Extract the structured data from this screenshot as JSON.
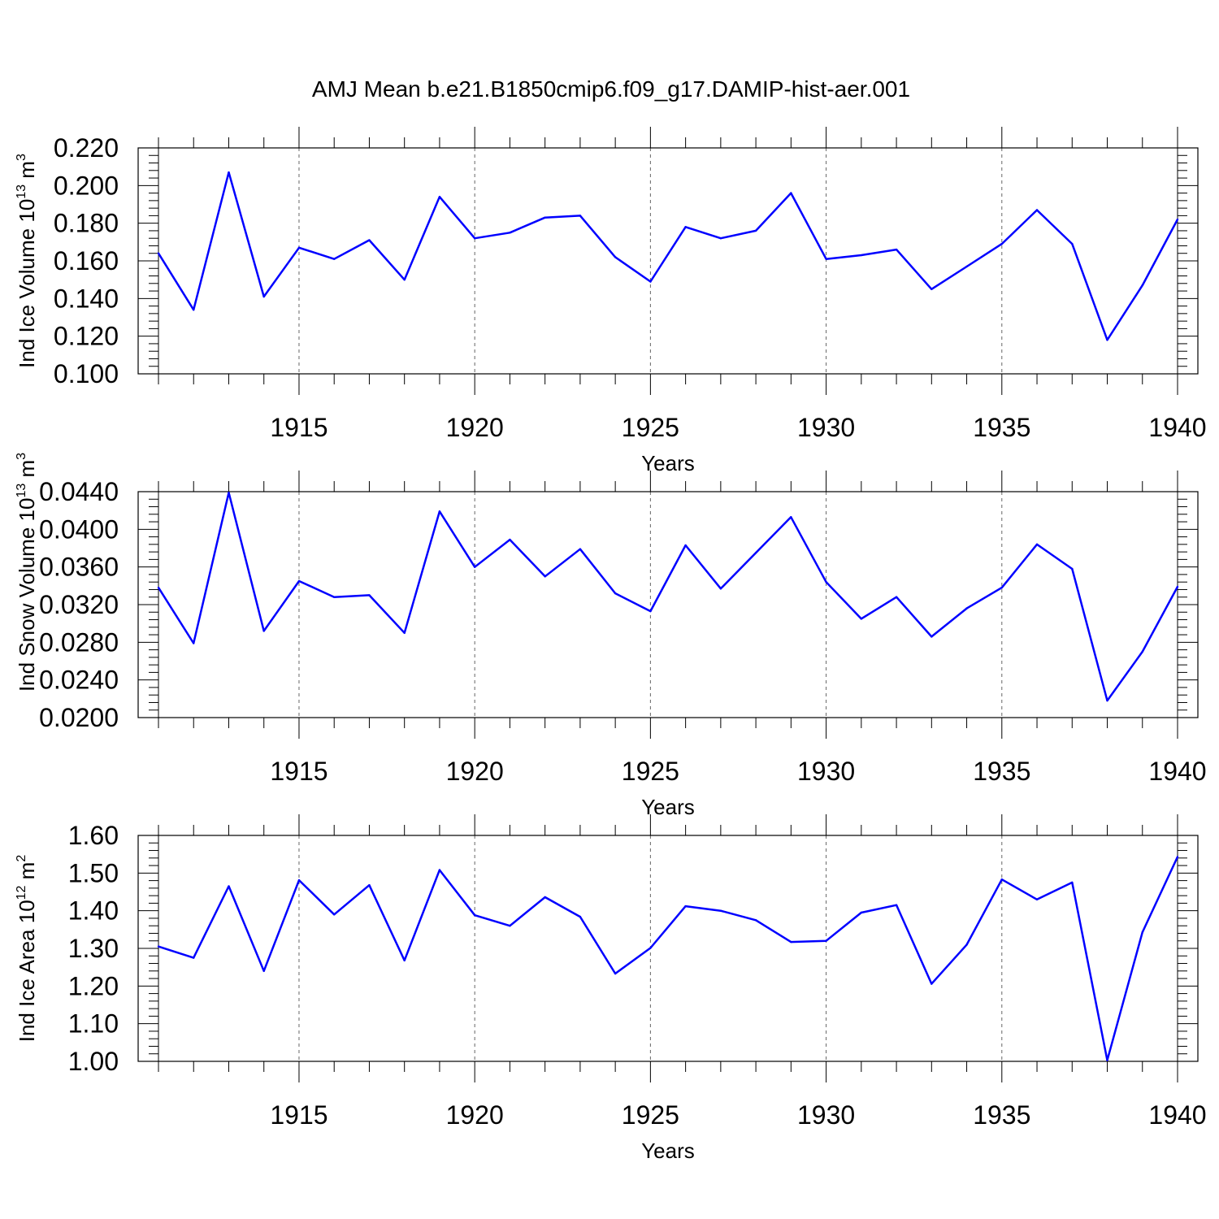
{
  "title": "AMJ Mean b.e21.B1850cmip6.f09_g17.DAMIP-hist-aer.001",
  "colors": {
    "series": "#0000ff",
    "axes": "#000000"
  },
  "chart_data": [
    {
      "type": "line",
      "xlabel": "Years",
      "ylabel": {
        "text": "Ind Ice Volume 10",
        "exp": "13",
        "unit": " m",
        "unit_exp": "3"
      },
      "xlim": [
        1911,
        1940
      ],
      "ylim": [
        0.1,
        0.22
      ],
      "x_ticks": [
        "1915",
        "1920",
        "1925",
        "1930",
        "1935",
        "1940"
      ],
      "y_ticks": [
        "0.100",
        "0.120",
        "0.140",
        "0.160",
        "0.180",
        "0.200",
        "0.220"
      ],
      "grid": "dashed vertical at major x ticks",
      "x": [
        1911,
        1912,
        1913,
        1914,
        1915,
        1916,
        1917,
        1918,
        1919,
        1920,
        1921,
        1922,
        1923,
        1924,
        1925,
        1926,
        1927,
        1928,
        1929,
        1930,
        1931,
        1932,
        1933,
        1934,
        1935,
        1936,
        1937,
        1938,
        1939,
        1940
      ],
      "values": [
        0.164,
        0.134,
        0.207,
        0.141,
        0.167,
        0.161,
        0.171,
        0.15,
        0.194,
        0.172,
        0.175,
        0.183,
        0.184,
        0.162,
        0.149,
        0.178,
        0.172,
        0.176,
        0.196,
        0.161,
        0.163,
        0.166,
        0.145,
        0.157,
        0.169,
        0.187,
        0.169,
        0.118,
        0.147,
        0.182
      ]
    },
    {
      "type": "line",
      "xlabel": "Years",
      "ylabel": {
        "text": "Ind Snow Volume 10",
        "exp": "13",
        "unit": " m",
        "unit_exp": "3"
      },
      "xlim": [
        1911,
        1940
      ],
      "ylim": [
        0.02,
        0.044
      ],
      "x_ticks": [
        "1915",
        "1920",
        "1925",
        "1930",
        "1935",
        "1940"
      ],
      "y_ticks": [
        "0.0200",
        "0.0240",
        "0.0280",
        "0.0320",
        "0.0360",
        "0.0400",
        "0.0440"
      ],
      "grid": "dashed vertical at major x ticks",
      "x": [
        1911,
        1912,
        1913,
        1914,
        1915,
        1916,
        1917,
        1918,
        1919,
        1920,
        1921,
        1922,
        1923,
        1924,
        1925,
        1926,
        1927,
        1928,
        1929,
        1930,
        1931,
        1932,
        1933,
        1934,
        1935,
        1936,
        1937,
        1938,
        1939,
        1940
      ],
      "values": [
        0.0338,
        0.0279,
        0.0439,
        0.0292,
        0.0345,
        0.0328,
        0.033,
        0.029,
        0.0419,
        0.036,
        0.0389,
        0.035,
        0.0379,
        0.0332,
        0.0313,
        0.0383,
        0.0337,
        0.0375,
        0.0413,
        0.0344,
        0.0305,
        0.0328,
        0.0286,
        0.0316,
        0.0338,
        0.0384,
        0.0358,
        0.0218,
        0.027,
        0.0339
      ]
    },
    {
      "type": "line",
      "xlabel": "Years",
      "ylabel": {
        "text": "Ind Ice Area 10",
        "exp": "12",
        "unit": " m",
        "unit_exp": "2"
      },
      "xlim": [
        1911,
        1940
      ],
      "ylim": [
        1.0,
        1.6
      ],
      "x_ticks": [
        "1915",
        "1920",
        "1925",
        "1930",
        "1935",
        "1940"
      ],
      "y_ticks": [
        "1.00",
        "1.10",
        "1.20",
        "1.30",
        "1.40",
        "1.50",
        "1.60"
      ],
      "grid": "dashed vertical at major x ticks",
      "x": [
        1911,
        1912,
        1913,
        1914,
        1915,
        1916,
        1917,
        1918,
        1919,
        1920,
        1921,
        1922,
        1923,
        1924,
        1925,
        1926,
        1927,
        1928,
        1929,
        1930,
        1931,
        1932,
        1933,
        1934,
        1935,
        1936,
        1937,
        1938,
        1939,
        1940
      ],
      "values": [
        1.305,
        1.275,
        1.465,
        1.24,
        1.481,
        1.39,
        1.468,
        1.268,
        1.508,
        1.388,
        1.36,
        1.436,
        1.384,
        1.233,
        1.301,
        1.412,
        1.4,
        1.375,
        1.317,
        1.32,
        1.395,
        1.415,
        1.206,
        1.31,
        1.483,
        1.43,
        1.475,
        1.003,
        1.343,
        1.543
      ]
    }
  ]
}
